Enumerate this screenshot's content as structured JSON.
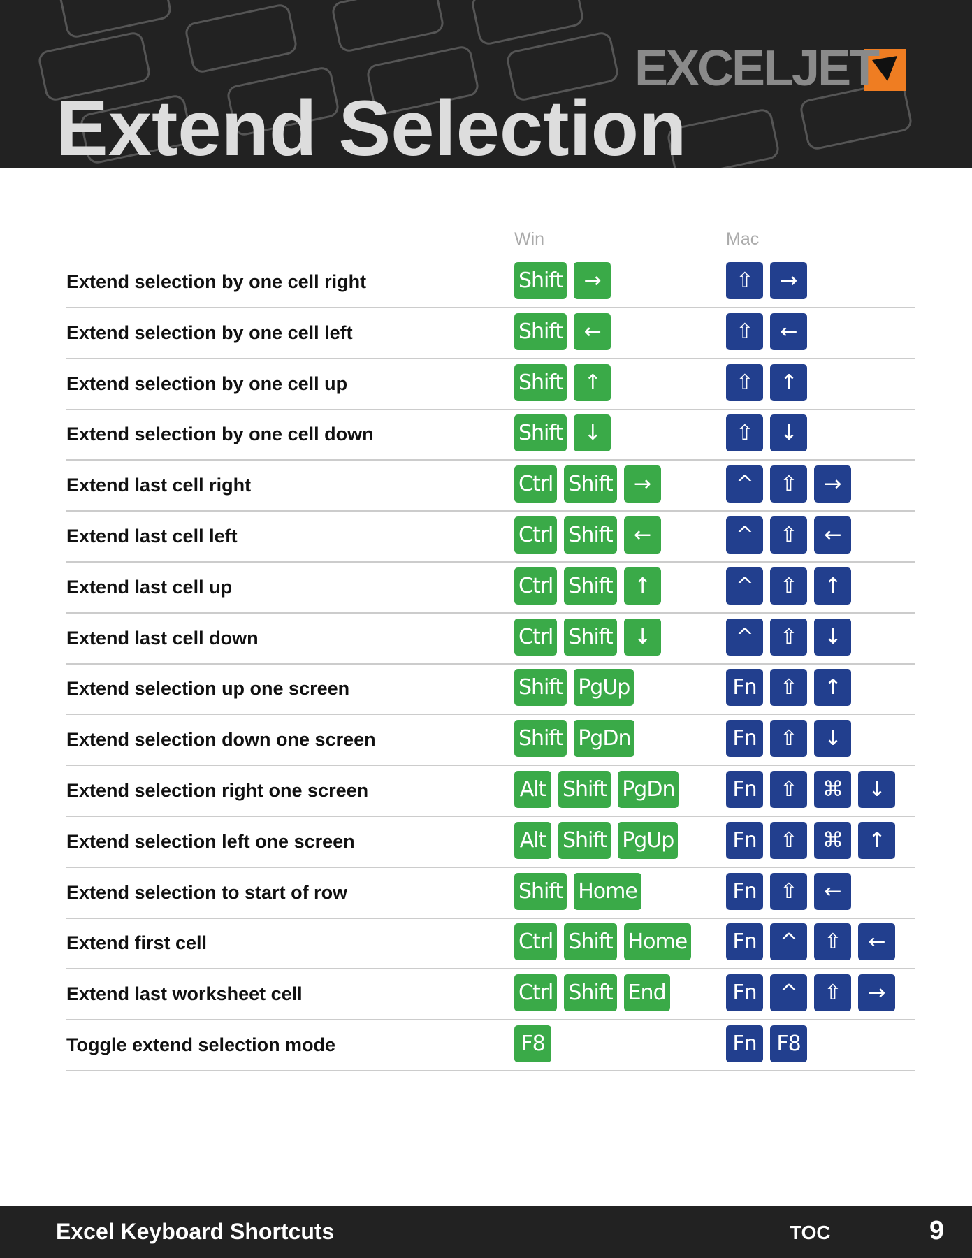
{
  "header": {
    "title": "Extend Selection",
    "logo": "EXCELJET"
  },
  "table": {
    "columns": [
      "Win",
      "Mac"
    ],
    "rows": [
      {
        "action": "Extend selection by one cell right",
        "win": [
          "Shift",
          "→"
        ],
        "mac": [
          "⇧",
          "→"
        ]
      },
      {
        "action": "Extend selection by one cell left",
        "win": [
          "Shift",
          "←"
        ],
        "mac": [
          "⇧",
          "←"
        ]
      },
      {
        "action": "Extend selection by one cell up",
        "win": [
          "Shift",
          "↑"
        ],
        "mac": [
          "⇧",
          "↑"
        ]
      },
      {
        "action": "Extend selection by one cell down",
        "win": [
          "Shift",
          "↓"
        ],
        "mac": [
          "⇧",
          "↓"
        ]
      },
      {
        "action": "Extend last cell right",
        "win": [
          "Ctrl",
          "Shift",
          "→"
        ],
        "mac": [
          "^",
          "⇧",
          "→"
        ]
      },
      {
        "action": "Extend last cell left",
        "win": [
          "Ctrl",
          "Shift",
          "←"
        ],
        "mac": [
          "^",
          "⇧",
          "←"
        ]
      },
      {
        "action": "Extend last cell up",
        "win": [
          "Ctrl",
          "Shift",
          "↑"
        ],
        "mac": [
          "^",
          "⇧",
          "↑"
        ]
      },
      {
        "action": "Extend last cell down",
        "win": [
          "Ctrl",
          "Shift",
          "↓"
        ],
        "mac": [
          "^",
          "⇧",
          "↓"
        ]
      },
      {
        "action": "Extend selection up one screen",
        "win": [
          "Shift",
          "PgUp"
        ],
        "mac": [
          "Fn",
          "⇧",
          "↑"
        ]
      },
      {
        "action": "Extend selection down one screen",
        "win": [
          "Shift",
          "PgDn"
        ],
        "mac": [
          "Fn",
          "⇧",
          "↓"
        ]
      },
      {
        "action": "Extend selection right one screen",
        "win": [
          "Alt",
          "Shift",
          "PgDn"
        ],
        "mac": [
          "Fn",
          "⇧",
          "⌘",
          "↓"
        ]
      },
      {
        "action": "Extend selection left one screen",
        "win": [
          "Alt",
          "Shift",
          "PgUp"
        ],
        "mac": [
          "Fn",
          "⇧",
          "⌘",
          "↑"
        ]
      },
      {
        "action": "Extend selection to start of row",
        "win": [
          "Shift",
          "Home"
        ],
        "mac": [
          "Fn",
          "⇧",
          "←"
        ]
      },
      {
        "action": "Extend first cell",
        "win": [
          "Ctrl",
          "Shift",
          "Home"
        ],
        "mac": [
          "Fn",
          "^",
          "⇧",
          "←"
        ]
      },
      {
        "action": "Extend last worksheet cell",
        "win": [
          "Ctrl",
          "Shift",
          "End"
        ],
        "mac": [
          "Fn",
          "^",
          "⇧",
          "→"
        ]
      },
      {
        "action": "Toggle extend selection mode",
        "win": [
          "F8"
        ],
        "mac": [
          "Fn",
          "F8"
        ]
      }
    ]
  },
  "footer": {
    "title": "Excel Keyboard Shortcuts",
    "toc": "TOC",
    "page": "9"
  }
}
